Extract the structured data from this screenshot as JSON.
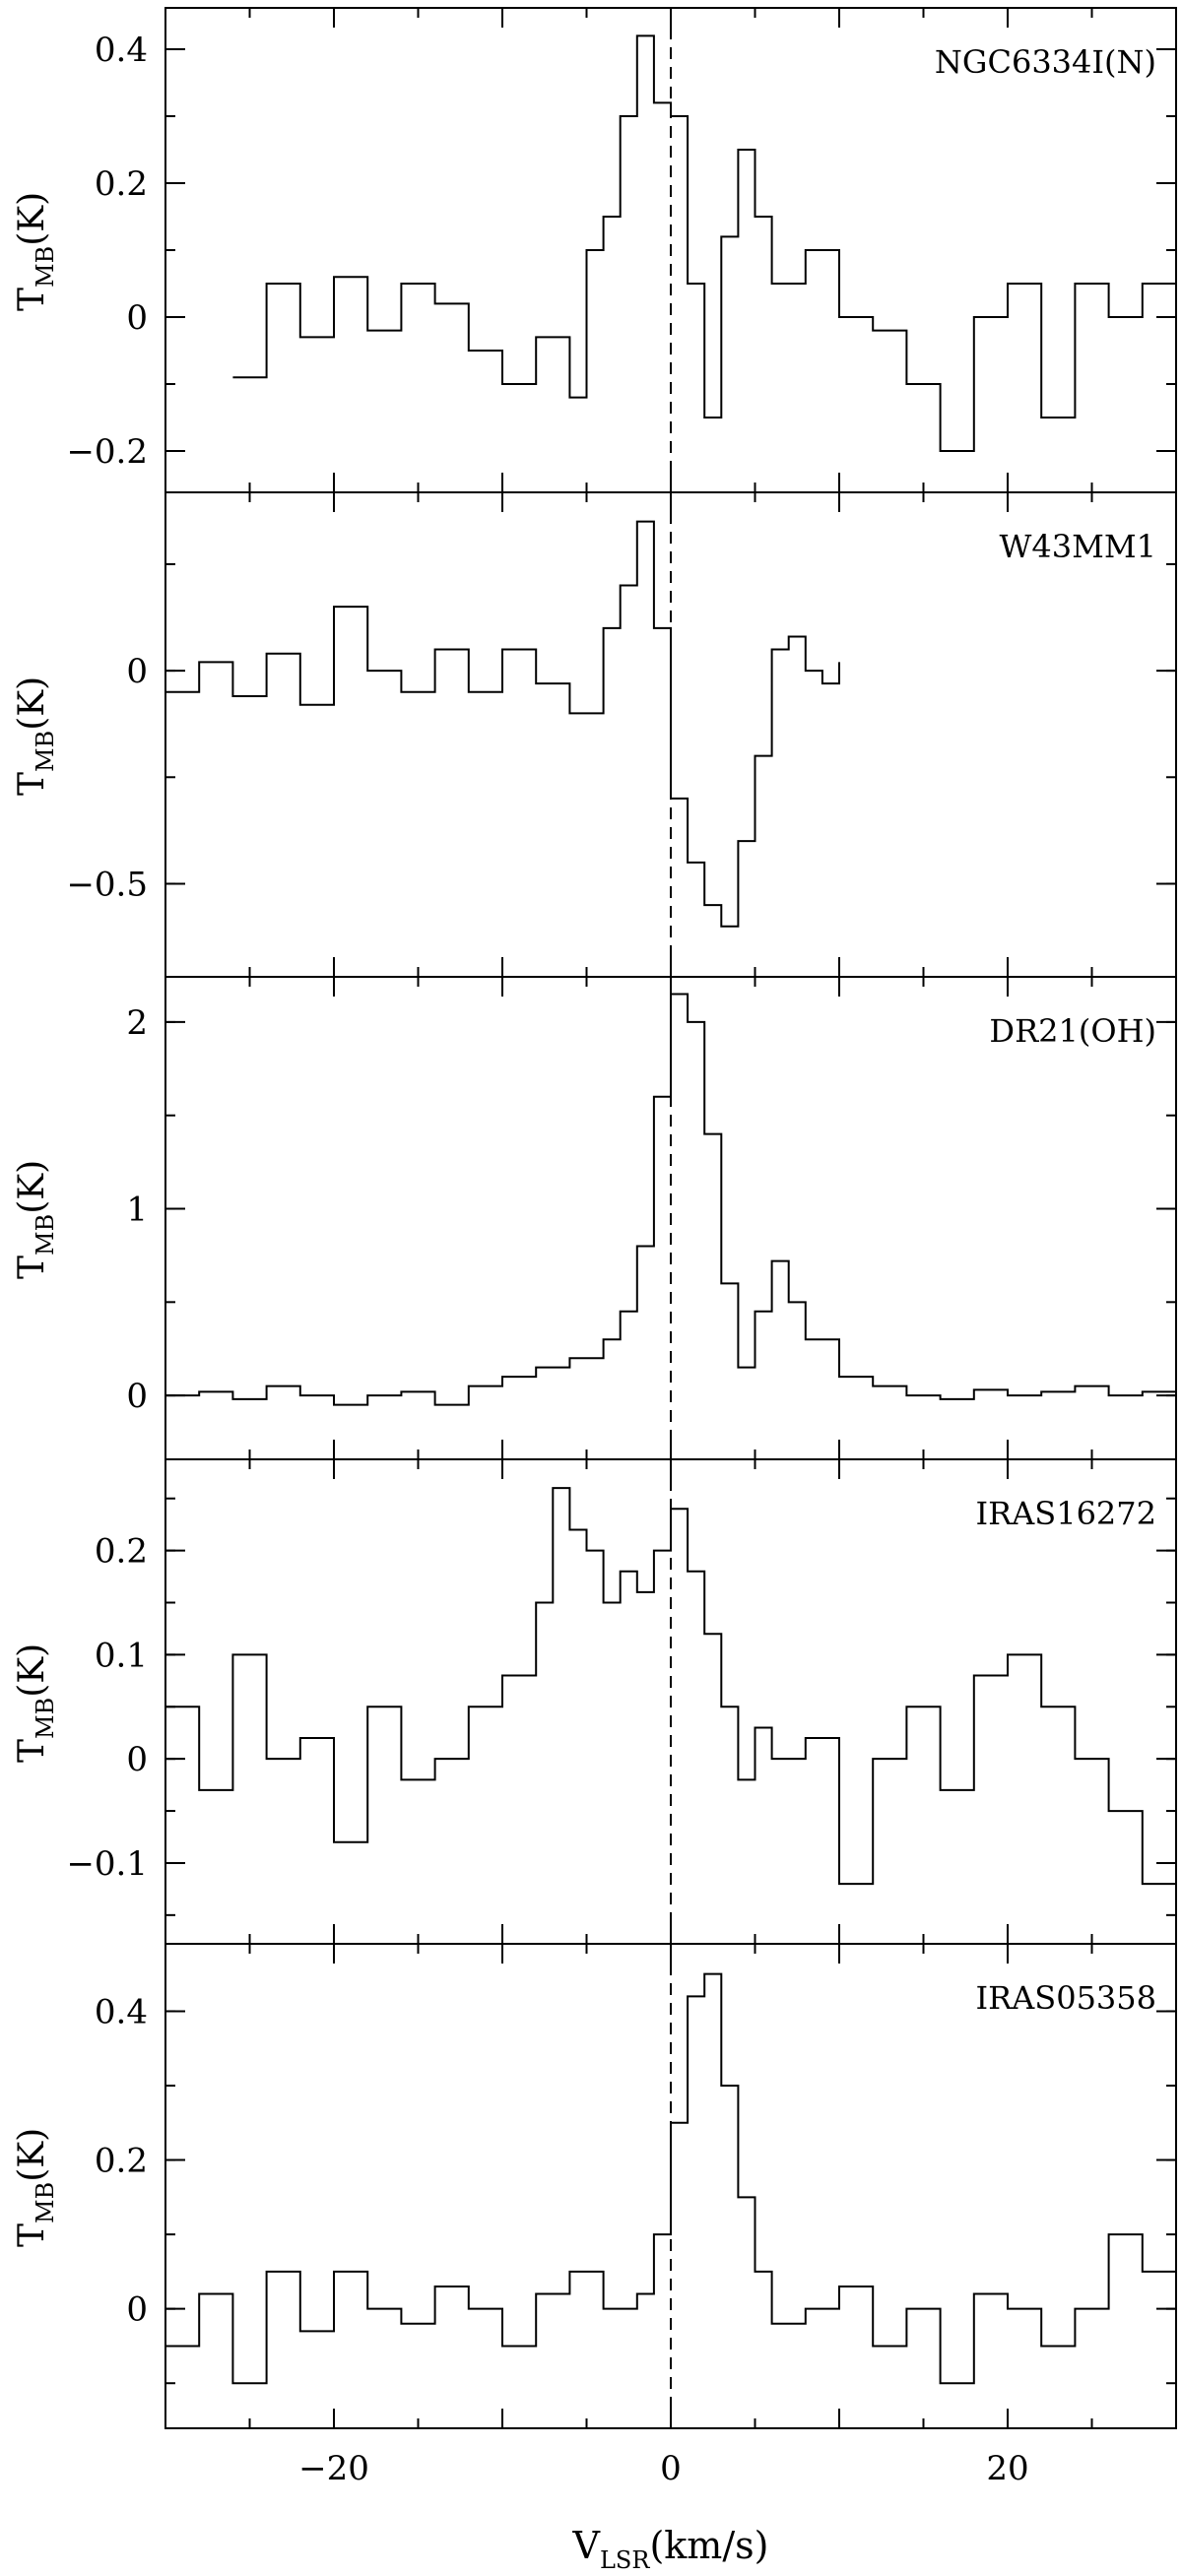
{
  "figure": {
    "xlabel_main": "V",
    "xlabel_sub": "LSR",
    "xlabel_unit": "(km/s)",
    "ylabel_main": "T",
    "ylabel_sub": "MB",
    "ylabel_unit": "(K)"
  },
  "chart_data": [
    {
      "type": "line",
      "title": "NGC6334I(N)",
      "xlabel": "V_LSR(km/s)",
      "ylabel": "T_MB(K)",
      "xlim": [
        -30,
        30
      ],
      "ylim": [
        -0.25,
        0.45
      ],
      "x_ticks": [
        -20,
        0,
        20
      ],
      "y_ticks": [
        -0.2,
        0,
        0.2,
        0.4
      ],
      "y_tick_labels": [
        "−0.2",
        "0",
        "0.2",
        "0.4"
      ],
      "step": true,
      "series": [
        {
          "x": [
            -26,
            -24,
            -22,
            -20,
            -18,
            -16,
            -14,
            -12,
            -10,
            -8,
            -6,
            -5,
            -4,
            -3,
            -2,
            -1,
            0,
            1,
            2,
            3,
            4,
            5,
            6,
            8,
            10,
            12,
            14,
            16,
            18,
            20,
            22,
            24,
            26,
            28,
            30
          ],
          "y": [
            -0.09,
            0.05,
            -0.03,
            0.06,
            -0.02,
            0.05,
            0.02,
            -0.05,
            -0.1,
            -0.03,
            -0.12,
            0.1,
            0.15,
            0.3,
            0.42,
            0.32,
            0.3,
            0.05,
            -0.15,
            0.12,
            0.25,
            0.15,
            0.05,
            0.1,
            0.0,
            -0.02,
            -0.1,
            -0.2,
            0.0,
            0.05,
            -0.15,
            0.05,
            0.0,
            0.05,
            -0.05
          ]
        }
      ]
    },
    {
      "type": "line",
      "title": "W43MM1",
      "xlabel": "V_LSR(km/s)",
      "ylabel": "T_MB(K)",
      "xlim": [
        -30,
        30
      ],
      "ylim": [
        -0.7,
        0.4
      ],
      "x_ticks": [
        -20,
        0,
        20
      ],
      "y_ticks": [
        -0.5,
        0
      ],
      "y_tick_labels": [
        "−0.5",
        "0"
      ],
      "step": true,
      "series": [
        {
          "x": [
            -30,
            -28,
            -26,
            -24,
            -22,
            -20,
            -18,
            -16,
            -14,
            -12,
            -10,
            -8,
            -6,
            -4,
            -3,
            -2,
            -1,
            0,
            1,
            2,
            3,
            4,
            5,
            6,
            7,
            8,
            9,
            10
          ],
          "y": [
            -0.05,
            0.02,
            -0.06,
            0.04,
            -0.08,
            0.15,
            0.0,
            -0.05,
            0.05,
            -0.05,
            0.05,
            -0.03,
            -0.1,
            0.1,
            0.2,
            0.35,
            0.1,
            -0.3,
            -0.45,
            -0.55,
            -0.6,
            -0.4,
            -0.2,
            0.05,
            0.08,
            0.0,
            -0.03,
            0.02
          ]
        }
      ]
    },
    {
      "type": "line",
      "title": "DR21(OH)",
      "xlabel": "V_LSR(km/s)",
      "ylabel": "T_MB(K)",
      "xlim": [
        -30,
        30
      ],
      "ylim": [
        -0.3,
        2.2
      ],
      "x_ticks": [
        -20,
        0,
        20
      ],
      "y_ticks": [
        0,
        1,
        2
      ],
      "y_tick_labels": [
        "0",
        "1",
        "2"
      ],
      "step": true,
      "series": [
        {
          "x": [
            -30,
            -28,
            -26,
            -24,
            -22,
            -20,
            -18,
            -16,
            -14,
            -12,
            -10,
            -8,
            -6,
            -4,
            -3,
            -2,
            -1,
            0,
            1,
            2,
            3,
            4,
            5,
            6,
            7,
            8,
            10,
            12,
            14,
            16,
            18,
            20,
            22,
            24,
            26,
            28,
            30
          ],
          "y": [
            0.0,
            0.02,
            -0.02,
            0.05,
            0.0,
            -0.05,
            0.0,
            0.02,
            -0.05,
            0.05,
            0.1,
            0.15,
            0.2,
            0.3,
            0.45,
            0.8,
            1.6,
            2.15,
            2.0,
            1.4,
            0.6,
            0.15,
            0.45,
            0.72,
            0.5,
            0.3,
            0.1,
            0.05,
            0.0,
            -0.02,
            0.03,
            0.0,
            0.02,
            0.05,
            0.0,
            0.02,
            0.0
          ]
        }
      ]
    },
    {
      "type": "line",
      "title": "IRAS16272",
      "xlabel": "V_LSR(km/s)",
      "ylabel": "T_MB(K)",
      "xlim": [
        -30,
        30
      ],
      "ylim": [
        -0.17,
        0.28
      ],
      "x_ticks": [
        -20,
        0,
        20
      ],
      "y_ticks": [
        -0.1,
        0,
        0.1,
        0.2
      ],
      "y_tick_labels": [
        "−0.1",
        "0",
        "0.1",
        "0.2"
      ],
      "step": true,
      "series": [
        {
          "x": [
            -30,
            -28,
            -26,
            -24,
            -22,
            -20,
            -18,
            -16,
            -14,
            -12,
            -10,
            -8,
            -7,
            -6,
            -5,
            -4,
            -3,
            -2,
            -1,
            0,
            1,
            2,
            3,
            4,
            5,
            6,
            8,
            10,
            12,
            14,
            16,
            18,
            20,
            22,
            24,
            26,
            28,
            30
          ],
          "y": [
            0.05,
            -0.03,
            0.1,
            0.0,
            0.02,
            -0.08,
            0.05,
            -0.02,
            0.0,
            0.05,
            0.08,
            0.15,
            0.26,
            0.22,
            0.2,
            0.15,
            0.18,
            0.16,
            0.2,
            0.24,
            0.18,
            0.12,
            0.05,
            -0.02,
            0.03,
            0.0,
            0.02,
            -0.12,
            0.0,
            0.05,
            -0.03,
            0.08,
            0.1,
            0.05,
            0.0,
            -0.05,
            -0.12,
            0.06
          ]
        }
      ]
    },
    {
      "type": "line",
      "title": "IRAS05358",
      "xlabel": "V_LSR(km/s)",
      "ylabel": "T_MB(K)",
      "xlim": [
        -30,
        30
      ],
      "ylim": [
        -0.15,
        0.48
      ],
      "x_ticks": [
        -20,
        0,
        20
      ],
      "y_ticks": [
        0,
        0.2,
        0.4
      ],
      "y_tick_labels": [
        "0",
        "0.2",
        "0.4"
      ],
      "step": true,
      "series": [
        {
          "x": [
            -30,
            -28,
            -26,
            -24,
            -22,
            -20,
            -18,
            -16,
            -14,
            -12,
            -10,
            -8,
            -6,
            -4,
            -2,
            -1,
            0,
            1,
            2,
            3,
            4,
            5,
            6,
            8,
            10,
            12,
            14,
            16,
            18,
            20,
            22,
            24,
            26,
            28,
            30
          ],
          "y": [
            -0.05,
            0.02,
            -0.1,
            0.05,
            -0.03,
            0.05,
            0.0,
            -0.02,
            0.03,
            0.0,
            -0.05,
            0.02,
            0.05,
            0.0,
            0.02,
            0.1,
            0.25,
            0.42,
            0.45,
            0.3,
            0.15,
            0.05,
            -0.02,
            0.0,
            0.03,
            -0.05,
            0.0,
            -0.1,
            0.02,
            0.0,
            -0.05,
            0.0,
            0.1,
            0.05,
            -0.03
          ]
        }
      ]
    }
  ]
}
